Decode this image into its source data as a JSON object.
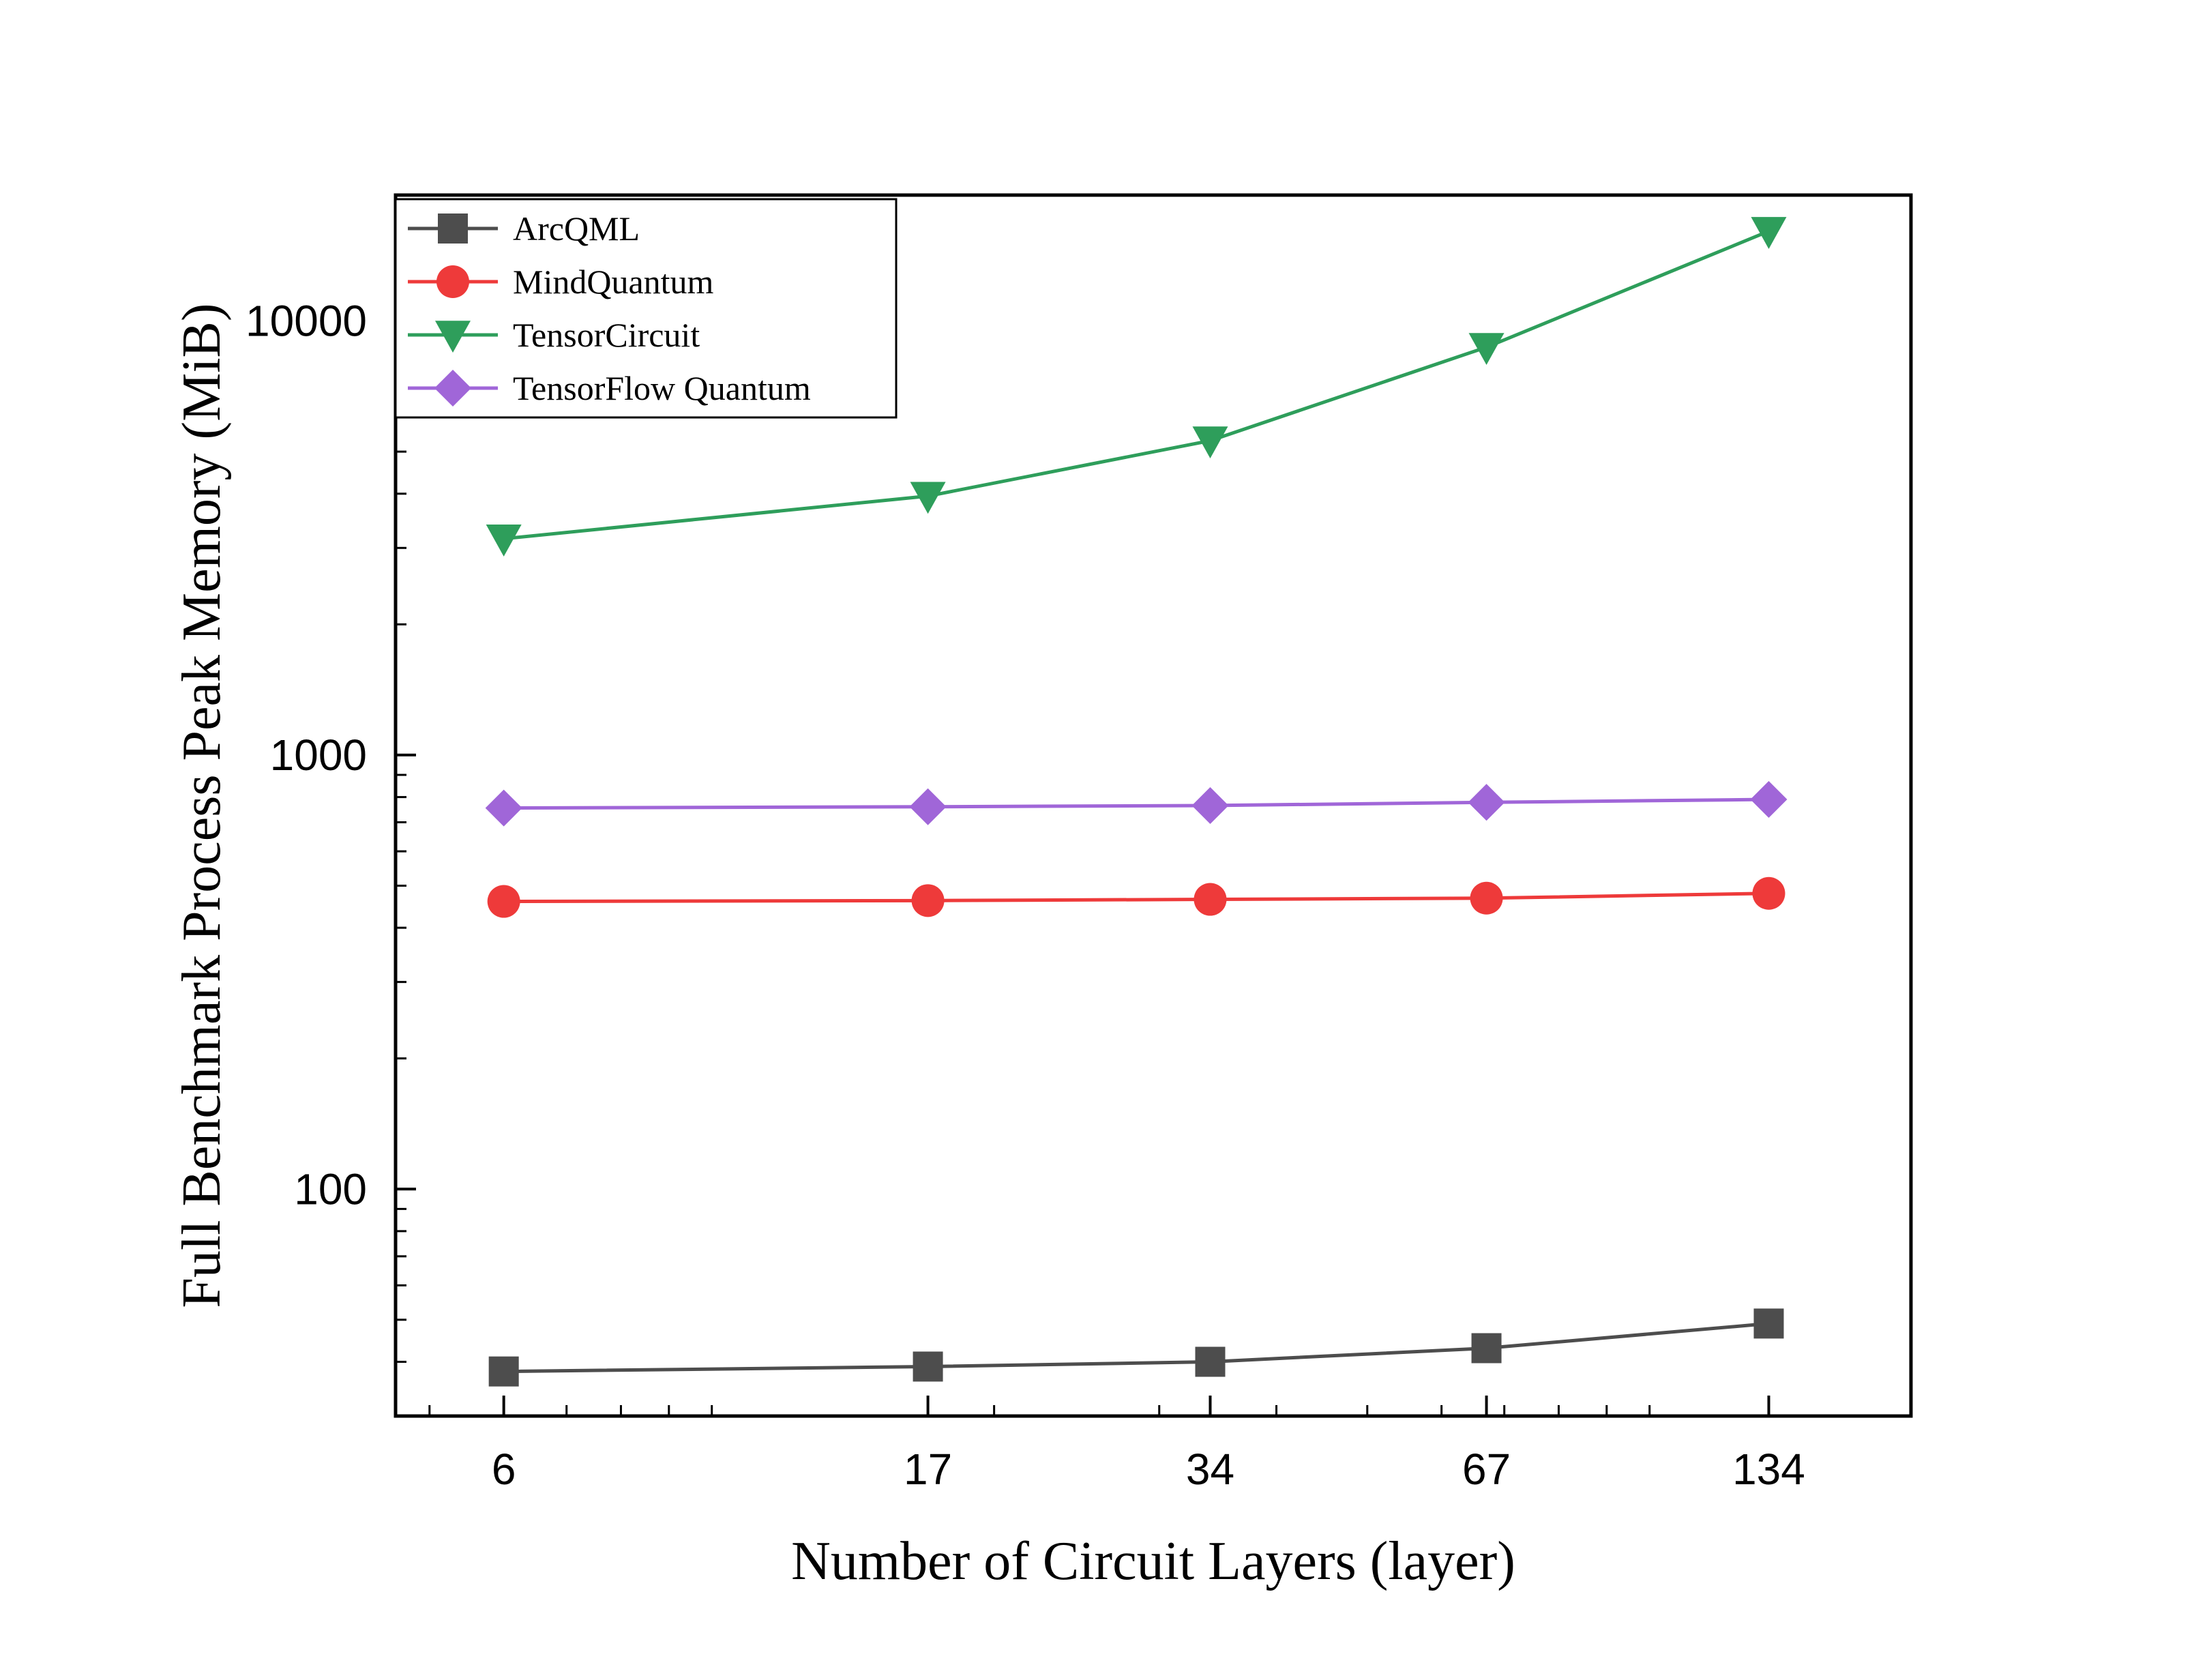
{
  "chart_data": {
    "type": "line",
    "xlabel": "Number of Circuit Layers (layer)",
    "ylabel": "Full Benchmark Process Peak Memory (MiB)",
    "x_scale": "log",
    "y_scale": "log",
    "x": [
      6,
      17,
      34,
      67,
      134
    ],
    "x_tick_labels": [
      "6",
      "17",
      "34",
      "67",
      "134"
    ],
    "y_tick_labels": [
      "100",
      "1000",
      "10000"
    ],
    "xlim": [
      4.6,
      190
    ],
    "ylim": [
      30,
      19500
    ],
    "grid": false,
    "legend_position": "top-left",
    "series": [
      {
        "name": "ArcQML",
        "color": "#4d4d4d",
        "marker": "square",
        "values": [
          38,
          39,
          40,
          43,
          49
        ]
      },
      {
        "name": "MindQuantum",
        "color": "#ee3a3a",
        "marker": "circle",
        "values": [
          460,
          462,
          465,
          468,
          480
        ]
      },
      {
        "name": "TensorCircuit",
        "color": "#2e9e5b",
        "marker": "triangle-down",
        "values": [
          3150,
          3950,
          5300,
          8700,
          16100
        ]
      },
      {
        "name": "TensorFlow Quantum",
        "color": "#a066d8",
        "marker": "diamond",
        "values": [
          755,
          760,
          765,
          778,
          790
        ]
      }
    ]
  }
}
